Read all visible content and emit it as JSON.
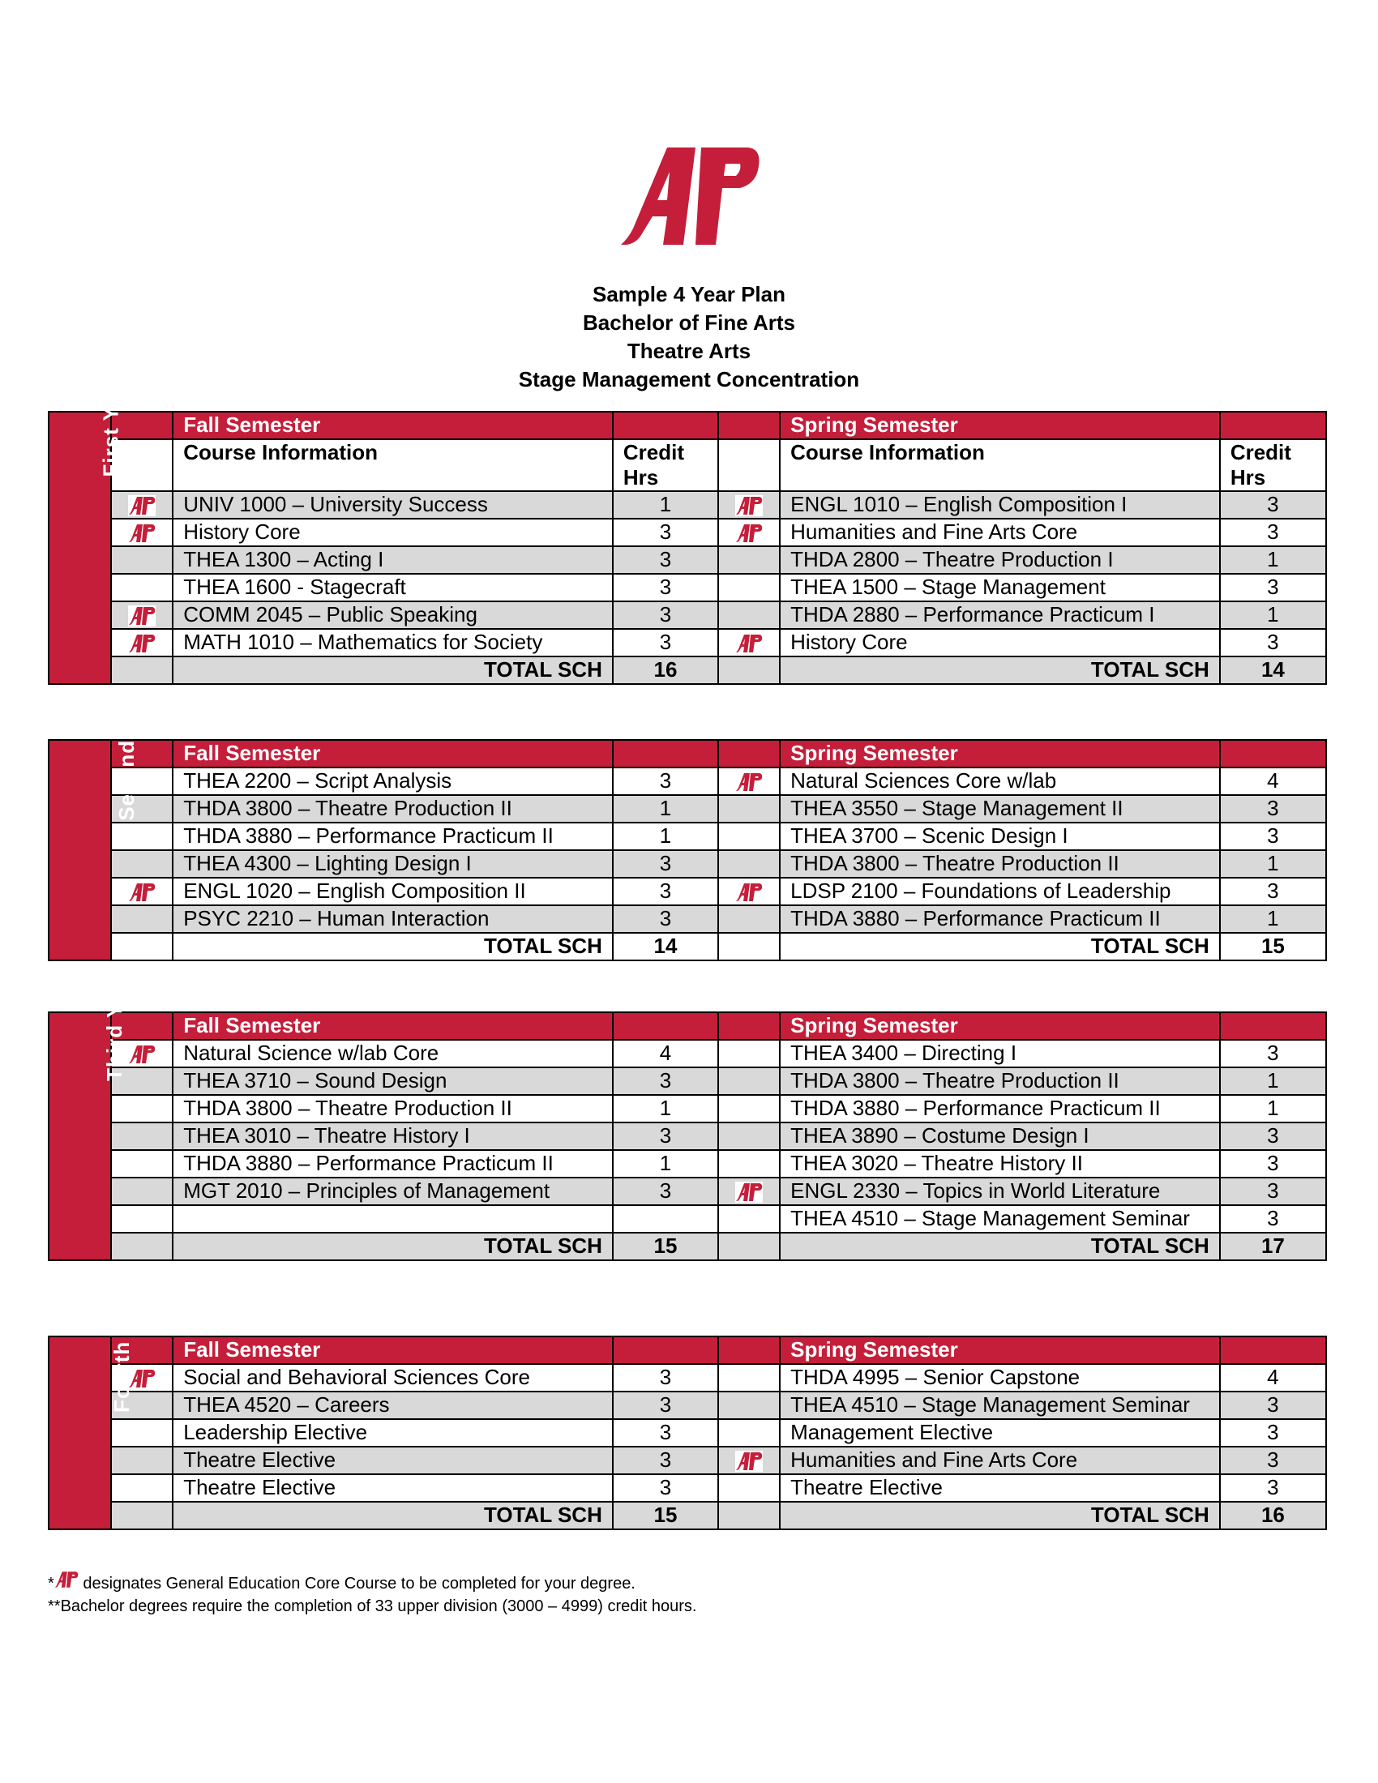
{
  "brand_color": "#c41e3a",
  "logo_text": "AP",
  "titles": [
    "Sample 4 Year Plan",
    "Bachelor of Fine Arts",
    "Theatre Arts",
    "Stage Management Concentration"
  ],
  "labels": {
    "fall": "Fall Semester",
    "spring": "Spring Semester",
    "course_info": "Course Information",
    "credit_hrs": "Credit Hrs",
    "total": "TOTAL SCH"
  },
  "years": [
    {
      "name": "First Year",
      "show_col_header": true,
      "fall_total": "16",
      "spring_total": "14",
      "rows": [
        {
          "shaded": true,
          "fall": {
            "core": true,
            "course": "UNIV 1000 – University Success",
            "hrs": "1"
          },
          "spring": {
            "core": true,
            "course": "ENGL 1010 – English Composition I",
            "hrs": "3"
          }
        },
        {
          "shaded": false,
          "fall": {
            "core": true,
            "course": "History Core",
            "hrs": "3"
          },
          "spring": {
            "core": true,
            "course": "Humanities and Fine Arts Core",
            "hrs": "3"
          }
        },
        {
          "shaded": true,
          "fall": {
            "core": false,
            "course": "THEA 1300 – Acting I",
            "hrs": "3"
          },
          "spring": {
            "core": false,
            "course": "THDA 2800 – Theatre Production I",
            "hrs": "1"
          }
        },
        {
          "shaded": false,
          "fall": {
            "core": false,
            "course": "THEA 1600 - Stagecraft",
            "hrs": "3"
          },
          "spring": {
            "core": false,
            "course": "THEA 1500 – Stage Management",
            "hrs": "3"
          }
        },
        {
          "shaded": true,
          "fall": {
            "core": true,
            "course": "COMM 2045 – Public Speaking",
            "hrs": "3"
          },
          "spring": {
            "core": false,
            "course": "THDA 2880 – Performance Practicum I",
            "hrs": "1"
          }
        },
        {
          "shaded": false,
          "fall": {
            "core": true,
            "course": "MATH 1010 – Mathematics for Society",
            "hrs": "3"
          },
          "spring": {
            "core": true,
            "course": "History Core",
            "hrs": "3"
          }
        }
      ],
      "total_shaded": true
    },
    {
      "name": "Second Year",
      "show_col_header": false,
      "fall_total": "14",
      "spring_total": "15",
      "rows": [
        {
          "shaded": false,
          "fall": {
            "core": false,
            "course": "THEA 2200 – Script Analysis",
            "hrs": "3"
          },
          "spring": {
            "core": true,
            "course": "Natural Sciences Core w/lab",
            "hrs": "4"
          }
        },
        {
          "shaded": true,
          "fall": {
            "core": false,
            "course": "THDA 3800 – Theatre Production II",
            "hrs": "1"
          },
          "spring": {
            "core": false,
            "course": "THEA 3550 – Stage Management II",
            "hrs": "3"
          }
        },
        {
          "shaded": false,
          "fall": {
            "core": false,
            "course": "THDA 3880 – Performance Practicum II",
            "hrs": "1"
          },
          "spring": {
            "core": false,
            "course": "THEA 3700 – Scenic Design I",
            "hrs": "3"
          }
        },
        {
          "shaded": true,
          "fall": {
            "core": false,
            "course": "THEA 4300 – Lighting Design I",
            "hrs": "3"
          },
          "spring": {
            "core": false,
            "course": "THDA 3800 – Theatre Production II",
            "hrs": "1"
          }
        },
        {
          "shaded": false,
          "fall": {
            "core": true,
            "course": "ENGL 1020 – English Composition II",
            "hrs": "3"
          },
          "spring": {
            "core": true,
            "course": "LDSP 2100 – Foundations of Leadership",
            "hrs": "3"
          }
        },
        {
          "shaded": true,
          "fall": {
            "core": false,
            "course": "PSYC 2210 – Human Interaction",
            "hrs": "3"
          },
          "spring": {
            "core": false,
            "course": "THDA 3880 – Performance Practicum II",
            "hrs": "1"
          }
        }
      ],
      "total_shaded": false
    },
    {
      "name": "Third Year",
      "show_col_header": false,
      "fall_total": "15",
      "spring_total": "17",
      "rows": [
        {
          "shaded": false,
          "fall": {
            "core": true,
            "course": "Natural Science w/lab Core",
            "hrs": "4"
          },
          "spring": {
            "core": false,
            "course": "THEA 3400 – Directing I",
            "hrs": "3"
          }
        },
        {
          "shaded": true,
          "fall": {
            "core": false,
            "course": "THEA 3710 – Sound Design",
            "hrs": "3"
          },
          "spring": {
            "core": false,
            "course": "THDA 3800 – Theatre Production II",
            "hrs": "1"
          }
        },
        {
          "shaded": false,
          "fall": {
            "core": false,
            "course": "THDA 3800 – Theatre Production II",
            "hrs": "1"
          },
          "spring": {
            "core": false,
            "course": "THDA 3880 – Performance Practicum II",
            "hrs": "1"
          }
        },
        {
          "shaded": true,
          "fall": {
            "core": false,
            "course": "THEA 3010 – Theatre History I",
            "hrs": "3"
          },
          "spring": {
            "core": false,
            "course": "THEA 3890 – Costume Design I",
            "hrs": "3"
          }
        },
        {
          "shaded": false,
          "fall": {
            "core": false,
            "course": "THDA 3880 – Performance Practicum II",
            "hrs": "1"
          },
          "spring": {
            "core": false,
            "course": "THEA 3020 – Theatre History II",
            "hrs": "3"
          }
        },
        {
          "shaded": true,
          "fall": {
            "core": false,
            "course": "MGT 2010 – Principles of Management",
            "hrs": "3"
          },
          "spring": {
            "core": true,
            "course": "ENGL 2330 – Topics in World Literature",
            "hrs": "3"
          }
        },
        {
          "shaded": false,
          "fall": {
            "core": false,
            "course": "",
            "hrs": ""
          },
          "spring": {
            "core": false,
            "course": "THEA 4510 – Stage Management Seminar",
            "hrs": "3"
          }
        }
      ],
      "total_shaded": true
    },
    {
      "name": "Fourth Year",
      "show_col_header": false,
      "fall_total": "15",
      "spring_total": "16",
      "rows": [
        {
          "shaded": false,
          "fall": {
            "core": true,
            "course": "Social and Behavioral Sciences Core",
            "hrs": "3"
          },
          "spring": {
            "core": false,
            "course": "THDA 4995 – Senior Capstone",
            "hrs": "4"
          }
        },
        {
          "shaded": true,
          "fall": {
            "core": false,
            "course": "THEA 4520 – Careers",
            "hrs": "3"
          },
          "spring": {
            "core": false,
            "course": "THEA 4510 – Stage Management Seminar",
            "hrs": "3"
          }
        },
        {
          "shaded": false,
          "fall": {
            "core": false,
            "course": "Leadership Elective",
            "hrs": "3"
          },
          "spring": {
            "core": false,
            "course": "Management Elective",
            "hrs": "3"
          }
        },
        {
          "shaded": true,
          "fall": {
            "core": false,
            "course": "Theatre Elective",
            "hrs": "3"
          },
          "spring": {
            "core": true,
            "course": "Humanities and Fine Arts Core",
            "hrs": "3"
          }
        },
        {
          "shaded": false,
          "fall": {
            "core": false,
            "course": "Theatre Elective",
            "hrs": "3"
          },
          "spring": {
            "core": false,
            "course": "Theatre Elective",
            "hrs": "3"
          }
        }
      ],
      "total_shaded": true
    }
  ],
  "footnotes": {
    "core_prefix": "*",
    "core_note": " designates General Education Core Course to be completed for your degree.",
    "upper_division": "**Bachelor degrees require the completion of 33 upper division (3000 – 4999) credit hours."
  }
}
